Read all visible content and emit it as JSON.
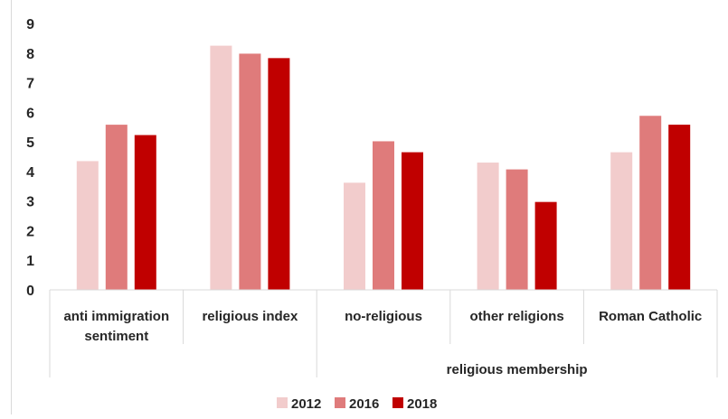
{
  "chart_data": {
    "type": "bar",
    "categories": [
      "anti immigration sentiment",
      "religious index",
      "no-religious",
      "other religions",
      "Roman Catholic"
    ],
    "category_lines": [
      [
        "anti immigration",
        "sentiment"
      ],
      [
        "religious index"
      ],
      [
        "no-religious"
      ],
      [
        "other religions"
      ],
      [
        "Roman Catholic"
      ]
    ],
    "group_label": "religious membership",
    "grouped_categories": [
      "no-religious",
      "other religions",
      "Roman Catholic"
    ],
    "series": [
      {
        "name": "2012",
        "color": "#f2cccc",
        "values": [
          4.35,
          8.25,
          3.62,
          4.3,
          4.65
        ]
      },
      {
        "name": "2016",
        "color": "#df7b7b",
        "values": [
          5.58,
          7.98,
          5.02,
          4.07,
          5.88
        ]
      },
      {
        "name": "2018",
        "color": "#c00000",
        "values": [
          5.23,
          7.83,
          4.65,
          2.97,
          5.58
        ]
      }
    ],
    "ylim": [
      0,
      9
    ],
    "yticks": [
      0,
      1,
      2,
      3,
      4,
      5,
      6,
      7,
      8,
      9
    ],
    "grid": false,
    "legend_position": "bottom",
    "title": "",
    "xlabel": "",
    "ylabel": ""
  }
}
